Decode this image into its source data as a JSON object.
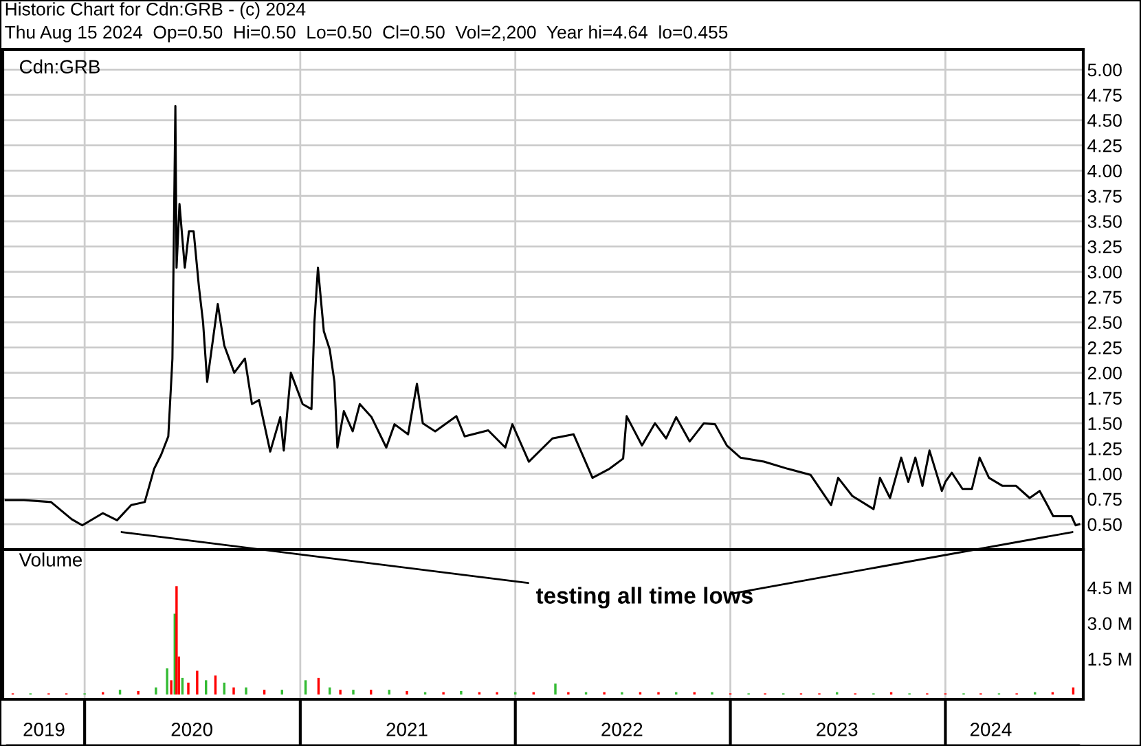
{
  "chart_data": [
    {
      "type": "line",
      "title": "Historic Chart for Cdn:GRB - (c) 2024",
      "subtitle": "Thu Aug 15 2024  Op=0.50  Hi=0.50  Lo=0.50  Cl=0.50  Vol=2,200  Year hi=4.64  lo=0.455",
      "annotations": [
        "Cdn:GRB",
        "testing all time lows"
      ],
      "series": [
        {
          "color": "#000000",
          "x": [
            "2019-08-20",
            "2019-09-20",
            "2019-11-05",
            "2019-12-10",
            "2019-12-28",
            "2020-02-01",
            "2020-02-25",
            "2020-03-20",
            "2020-04-12",
            "2020-04-28",
            "2020-05-10",
            "2020-05-22",
            "2020-05-29",
            "2020-06-03",
            "2020-06-05",
            "2020-06-10",
            "2020-06-19",
            "2020-06-26",
            "2020-07-04",
            "2020-07-13",
            "2020-07-20",
            "2020-07-27",
            "2020-08-14",
            "2020-08-25",
            "2020-09-11",
            "2020-09-29",
            "2020-10-11",
            "2020-10-23",
            "2020-11-11",
            "2020-11-28",
            "2020-12-04",
            "2020-12-16",
            "2021-01-05",
            "2021-01-20",
            "2021-01-25",
            "2021-01-31",
            "2021-02-10",
            "2021-02-20",
            "2021-02-28",
            "2021-03-05",
            "2021-03-16",
            "2021-03-31",
            "2021-04-12",
            "2021-05-02",
            "2021-05-27",
            "2021-06-10",
            "2021-07-03",
            "2021-07-18",
            "2021-07-28",
            "2021-08-18",
            "2021-09-23",
            "2021-10-07",
            "2021-11-16",
            "2021-12-15",
            "2021-12-27",
            "2022-01-24",
            "2022-03-05",
            "2022-04-10",
            "2022-05-12",
            "2022-06-10",
            "2022-07-03",
            "2022-07-09",
            "2022-08-04",
            "2022-08-26",
            "2022-09-14",
            "2022-10-01",
            "2022-10-24",
            "2022-11-17",
            "2022-12-06",
            "2022-12-26",
            "2023-01-18",
            "2023-02-27",
            "2023-04-08",
            "2023-05-17",
            "2023-06-21",
            "2023-07-03",
            "2023-07-27",
            "2023-09-01",
            "2023-09-12",
            "2023-09-29",
            "2023-10-18",
            "2023-10-30",
            "2023-11-11",
            "2023-11-23",
            "2023-12-05",
            "2023-12-26",
            "2024-01-01",
            "2024-01-12",
            "2024-01-30",
            "2024-02-15",
            "2024-02-28",
            "2024-03-15",
            "2024-04-07",
            "2024-04-30",
            "2024-05-23",
            "2024-06-09",
            "2024-06-23",
            "2024-07-02",
            "2024-08-02",
            "2024-08-09",
            "2024-08-15"
          ],
          "values": [
            0.74,
            0.74,
            0.72,
            0.55,
            0.49,
            0.61,
            0.54,
            0.69,
            0.72,
            1.05,
            1.19,
            1.37,
            2.14,
            4.64,
            3.04,
            3.67,
            3.04,
            3.4,
            3.4,
            2.85,
            2.5,
            1.91,
            2.68,
            2.27,
            2.0,
            2.14,
            1.69,
            1.73,
            1.22,
            1.56,
            1.23,
            2.0,
            1.69,
            1.64,
            2.5,
            3.04,
            2.41,
            2.23,
            1.91,
            1.26,
            1.62,
            1.42,
            1.69,
            1.56,
            1.26,
            1.49,
            1.39,
            1.89,
            1.5,
            1.42,
            1.57,
            1.37,
            1.43,
            1.26,
            1.49,
            1.12,
            1.35,
            1.39,
            0.96,
            1.05,
            1.15,
            1.57,
            1.28,
            1.5,
            1.35,
            1.56,
            1.32,
            1.5,
            1.49,
            1.28,
            1.16,
            1.12,
            1.05,
            0.99,
            0.69,
            0.96,
            0.78,
            0.65,
            0.96,
            0.76,
            1.16,
            0.92,
            1.16,
            0.88,
            1.23,
            0.83,
            0.92,
            1.01,
            0.85,
            0.85,
            1.16,
            0.96,
            0.88,
            0.88,
            0.76,
            0.83,
            0.68,
            0.58,
            0.58,
            0.49,
            0.5
          ]
        }
      ],
      "xlim": [
        "2019-08-15",
        "2024-08-22"
      ],
      "xticks": [
        {
          "value": "2020-01-01",
          "label": null
        },
        {
          "value": "2021-01-01",
          "label": null
        },
        {
          "value": "2022-01-01",
          "label": null
        },
        {
          "value": "2023-01-01",
          "label": null
        },
        {
          "value": "2024-01-01",
          "label": null
        }
      ],
      "ylim": [
        0.25,
        5.2
      ],
      "yticks": [
        {
          "value": 0.5,
          "label": "0.50"
        },
        {
          "value": 0.75,
          "label": "0.75"
        },
        {
          "value": 1.0,
          "label": "1.00"
        },
        {
          "value": 1.25,
          "label": "1.25"
        },
        {
          "value": 1.5,
          "label": "1.50"
        },
        {
          "value": 1.75,
          "label": "1.75"
        },
        {
          "value": 2.0,
          "label": "2.00"
        },
        {
          "value": 2.25,
          "label": "2.25"
        },
        {
          "value": 2.5,
          "label": "2.50"
        },
        {
          "value": 2.75,
          "label": "2.75"
        },
        {
          "value": 3.0,
          "label": "3.00"
        },
        {
          "value": 3.25,
          "label": "3.25"
        },
        {
          "value": 3.5,
          "label": "3.50"
        },
        {
          "value": 3.75,
          "label": "3.75"
        },
        {
          "value": 4.0,
          "label": "4.00"
        },
        {
          "value": 4.25,
          "label": "4.25"
        },
        {
          "value": 4.5,
          "label": "4.50"
        },
        {
          "value": 4.75,
          "label": "4.75"
        },
        {
          "value": 5.0,
          "label": "5.00"
        }
      ],
      "tick_labels": "y",
      "grid": true,
      "legend": false,
      "line_style": "solid",
      "marker": "none"
    },
    {
      "type": "bar",
      "annotations": [
        "Volume"
      ],
      "x": [
        "2019-09-01",
        "2019-10-01",
        "2019-11-01",
        "2019-12-01",
        "2020-01-01",
        "2020-02-01",
        "2020-03-01",
        "2020-04-01",
        "2020-05-01",
        "2020-05-20",
        "2020-05-27",
        "2020-06-02",
        "2020-06-05",
        "2020-06-09",
        "2020-06-15",
        "2020-06-25",
        "2020-07-10",
        "2020-07-25",
        "2020-08-10",
        "2020-08-25",
        "2020-09-10",
        "2020-10-01",
        "2020-11-01",
        "2020-12-01",
        "2021-01-10",
        "2021-02-01",
        "2021-02-20",
        "2021-03-10",
        "2021-04-01",
        "2021-05-01",
        "2021-06-01",
        "2021-07-01",
        "2021-08-01",
        "2021-09-01",
        "2021-10-01",
        "2021-11-01",
        "2021-12-01",
        "2022-01-01",
        "2022-02-01",
        "2022-03-10",
        "2022-04-01",
        "2022-05-01",
        "2022-06-01",
        "2022-07-01",
        "2022-08-01",
        "2022-09-01",
        "2022-10-01",
        "2022-11-01",
        "2022-12-01",
        "2023-01-01",
        "2023-02-01",
        "2023-03-01",
        "2023-04-01",
        "2023-05-01",
        "2023-06-01",
        "2023-07-01",
        "2023-08-01",
        "2023-09-01",
        "2023-10-01",
        "2023-11-01",
        "2023-12-01",
        "2024-01-01",
        "2024-02-01",
        "2024-03-01",
        "2024-04-01",
        "2024-05-01",
        "2024-06-01",
        "2024-07-01",
        "2024-08-05"
      ],
      "values": [
        0.05,
        0.05,
        0.05,
        0.05,
        0.05,
        0.1,
        0.2,
        0.15,
        0.3,
        1.1,
        0.6,
        3.4,
        4.56,
        1.6,
        0.7,
        0.5,
        1.0,
        0.6,
        0.8,
        0.5,
        0.3,
        0.3,
        0.2,
        0.2,
        0.6,
        0.7,
        0.3,
        0.2,
        0.2,
        0.2,
        0.2,
        0.15,
        0.1,
        0.1,
        0.15,
        0.1,
        0.1,
        0.1,
        0.1,
        0.46,
        0.1,
        0.1,
        0.1,
        0.1,
        0.1,
        0.1,
        0.1,
        0.1,
        0.1,
        0.05,
        0.05,
        0.05,
        0.05,
        0.05,
        0.05,
        0.1,
        0.05,
        0.05,
        0.1,
        0.05,
        0.05,
        0.05,
        0.05,
        0.05,
        0.05,
        0.05,
        0.1,
        0.1,
        0.3
      ],
      "colors": [
        "#ff0000",
        "#33bb33",
        "#ff0000",
        "#ff0000",
        "#33bb33",
        "#ff0000",
        "#33bb33",
        "#ff0000",
        "#33bb33",
        "#33bb33",
        "#ff0000",
        "#33bb33",
        "#ff0000",
        "#ff0000",
        "#33bb33",
        "#ff0000",
        "#ff0000",
        "#33bb33",
        "#ff0000",
        "#33bb33",
        "#ff0000",
        "#33bb33",
        "#ff0000",
        "#33bb33",
        "#33bb33",
        "#ff0000",
        "#33bb33",
        "#ff0000",
        "#33bb33",
        "#ff0000",
        "#33bb33",
        "#ff0000",
        "#33bb33",
        "#ff0000",
        "#33bb33",
        "#ff0000",
        "#ff0000",
        "#33bb33",
        "#ff0000",
        "#33bb33",
        "#ff0000",
        "#33bb33",
        "#ff0000",
        "#33bb33",
        "#ff0000",
        "#ff0000",
        "#33bb33",
        "#ff0000",
        "#33bb33",
        "#ff0000",
        "#33bb33",
        "#ff0000",
        "#33bb33",
        "#ff0000",
        "#ff0000",
        "#33bb33",
        "#ff0000",
        "#33bb33",
        "#ff0000",
        "#33bb33",
        "#ff0000",
        "#ff0000",
        "#33bb33",
        "#ff0000",
        "#33bb33",
        "#ff0000",
        "#33bb33",
        "#ff0000",
        "#ff0000"
      ],
      "xlim": [
        "2019-08-15",
        "2024-08-22"
      ],
      "xticks": [
        {
          "value": "2019-10-24",
          "label": "2019"
        },
        {
          "value": "2020-01-01",
          "label": null
        },
        {
          "value": "2020-07-01",
          "label": "2020"
        },
        {
          "value": "2021-01-01",
          "label": null
        },
        {
          "value": "2021-07-01",
          "label": "2021"
        },
        {
          "value": "2022-01-01",
          "label": null
        },
        {
          "value": "2022-07-01",
          "label": "2022"
        },
        {
          "value": "2023-01-01",
          "label": null
        },
        {
          "value": "2023-07-01",
          "label": "2023"
        },
        {
          "value": "2024-01-01",
          "label": null
        },
        {
          "value": "2024-03-18",
          "label": "2024"
        }
      ],
      "ylim": [
        -0.2,
        6.1
      ],
      "yticks": [
        {
          "value": 1.5,
          "label": "1.5 M"
        },
        {
          "value": 3.0,
          "label": "3.0 M"
        },
        {
          "value": 4.5,
          "label": "4.5 M"
        }
      ],
      "grid": "x",
      "legend": false
    }
  ]
}
